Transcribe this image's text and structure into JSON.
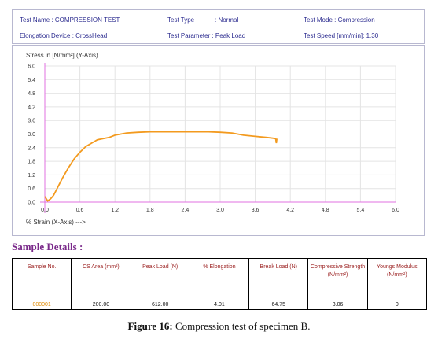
{
  "header": {
    "test_name": "Test Name : COMPRESSION TEST",
    "elongation_device": "Elongation Device : CrossHead",
    "test_type_label": "Test Type",
    "test_type_value": ": Normal",
    "test_parameter": "Test Parameter : Peak Load",
    "test_mode": "Test Mode   : Compression",
    "test_speed": "Test Speed  [mm/min]:  1.30"
  },
  "colors": {
    "curve": "#f39a1e",
    "axes": "#e070e0",
    "grid": "#e4e4e4",
    "header_text": "#2b2b8f",
    "table_header_text": "#9b2020",
    "sample_no_text": "#e08a00"
  },
  "chart_data": {
    "type": "line",
    "ylabel": "Stress in [N/mm²] (Y-Axis)",
    "xlabel": "% Strain (X-Axis) --->",
    "xlim": [
      0,
      6.0
    ],
    "ylim": [
      0,
      6.0
    ],
    "xticks": [
      "0.0",
      "0.6",
      "1.2",
      "1.8",
      "2.4",
      "3.0",
      "3.6",
      "4.2",
      "4.8",
      "5.4",
      "6.0"
    ],
    "yticks": [
      "0.0",
      "0.6",
      "1.2",
      "1.8",
      "2.4",
      "3.0",
      "3.6",
      "4.2",
      "4.8",
      "5.4",
      "6.0"
    ],
    "grid": true,
    "series": [
      {
        "x": [
          0.0,
          0.05,
          0.1,
          0.15,
          0.2,
          0.3,
          0.4,
          0.5,
          0.6,
          0.7,
          0.8,
          0.9,
          1.0,
          1.1,
          1.2,
          1.3,
          1.4,
          1.6,
          1.8,
          2.0,
          2.4,
          2.8,
          3.0,
          3.2,
          3.4,
          3.6,
          3.8,
          3.9,
          3.95,
          3.96,
          3.97
        ],
        "y": [
          0.25,
          0.05,
          0.15,
          0.3,
          0.55,
          1.05,
          1.5,
          1.9,
          2.2,
          2.45,
          2.6,
          2.75,
          2.8,
          2.85,
          2.95,
          3.0,
          3.05,
          3.08,
          3.1,
          3.1,
          3.1,
          3.1,
          3.08,
          3.05,
          2.95,
          2.9,
          2.85,
          2.82,
          2.8,
          2.6,
          2.8
        ]
      }
    ]
  },
  "sample_details": {
    "title": "Sample Details :",
    "columns": [
      "Sample No.",
      "CS Area (mm²)",
      "Peak Load (N)",
      "% Elongation",
      "Break Load (N)",
      "Compressive Strength (N/mm²)",
      "Youngs Modulus (N/mm²)"
    ],
    "rows": [
      [
        "000001",
        "200.00",
        "612.00",
        "4.01",
        "64.75",
        "3.06",
        "0"
      ]
    ]
  },
  "caption": {
    "label": "Figure 16:",
    "text": "Compression test of specimen B."
  }
}
